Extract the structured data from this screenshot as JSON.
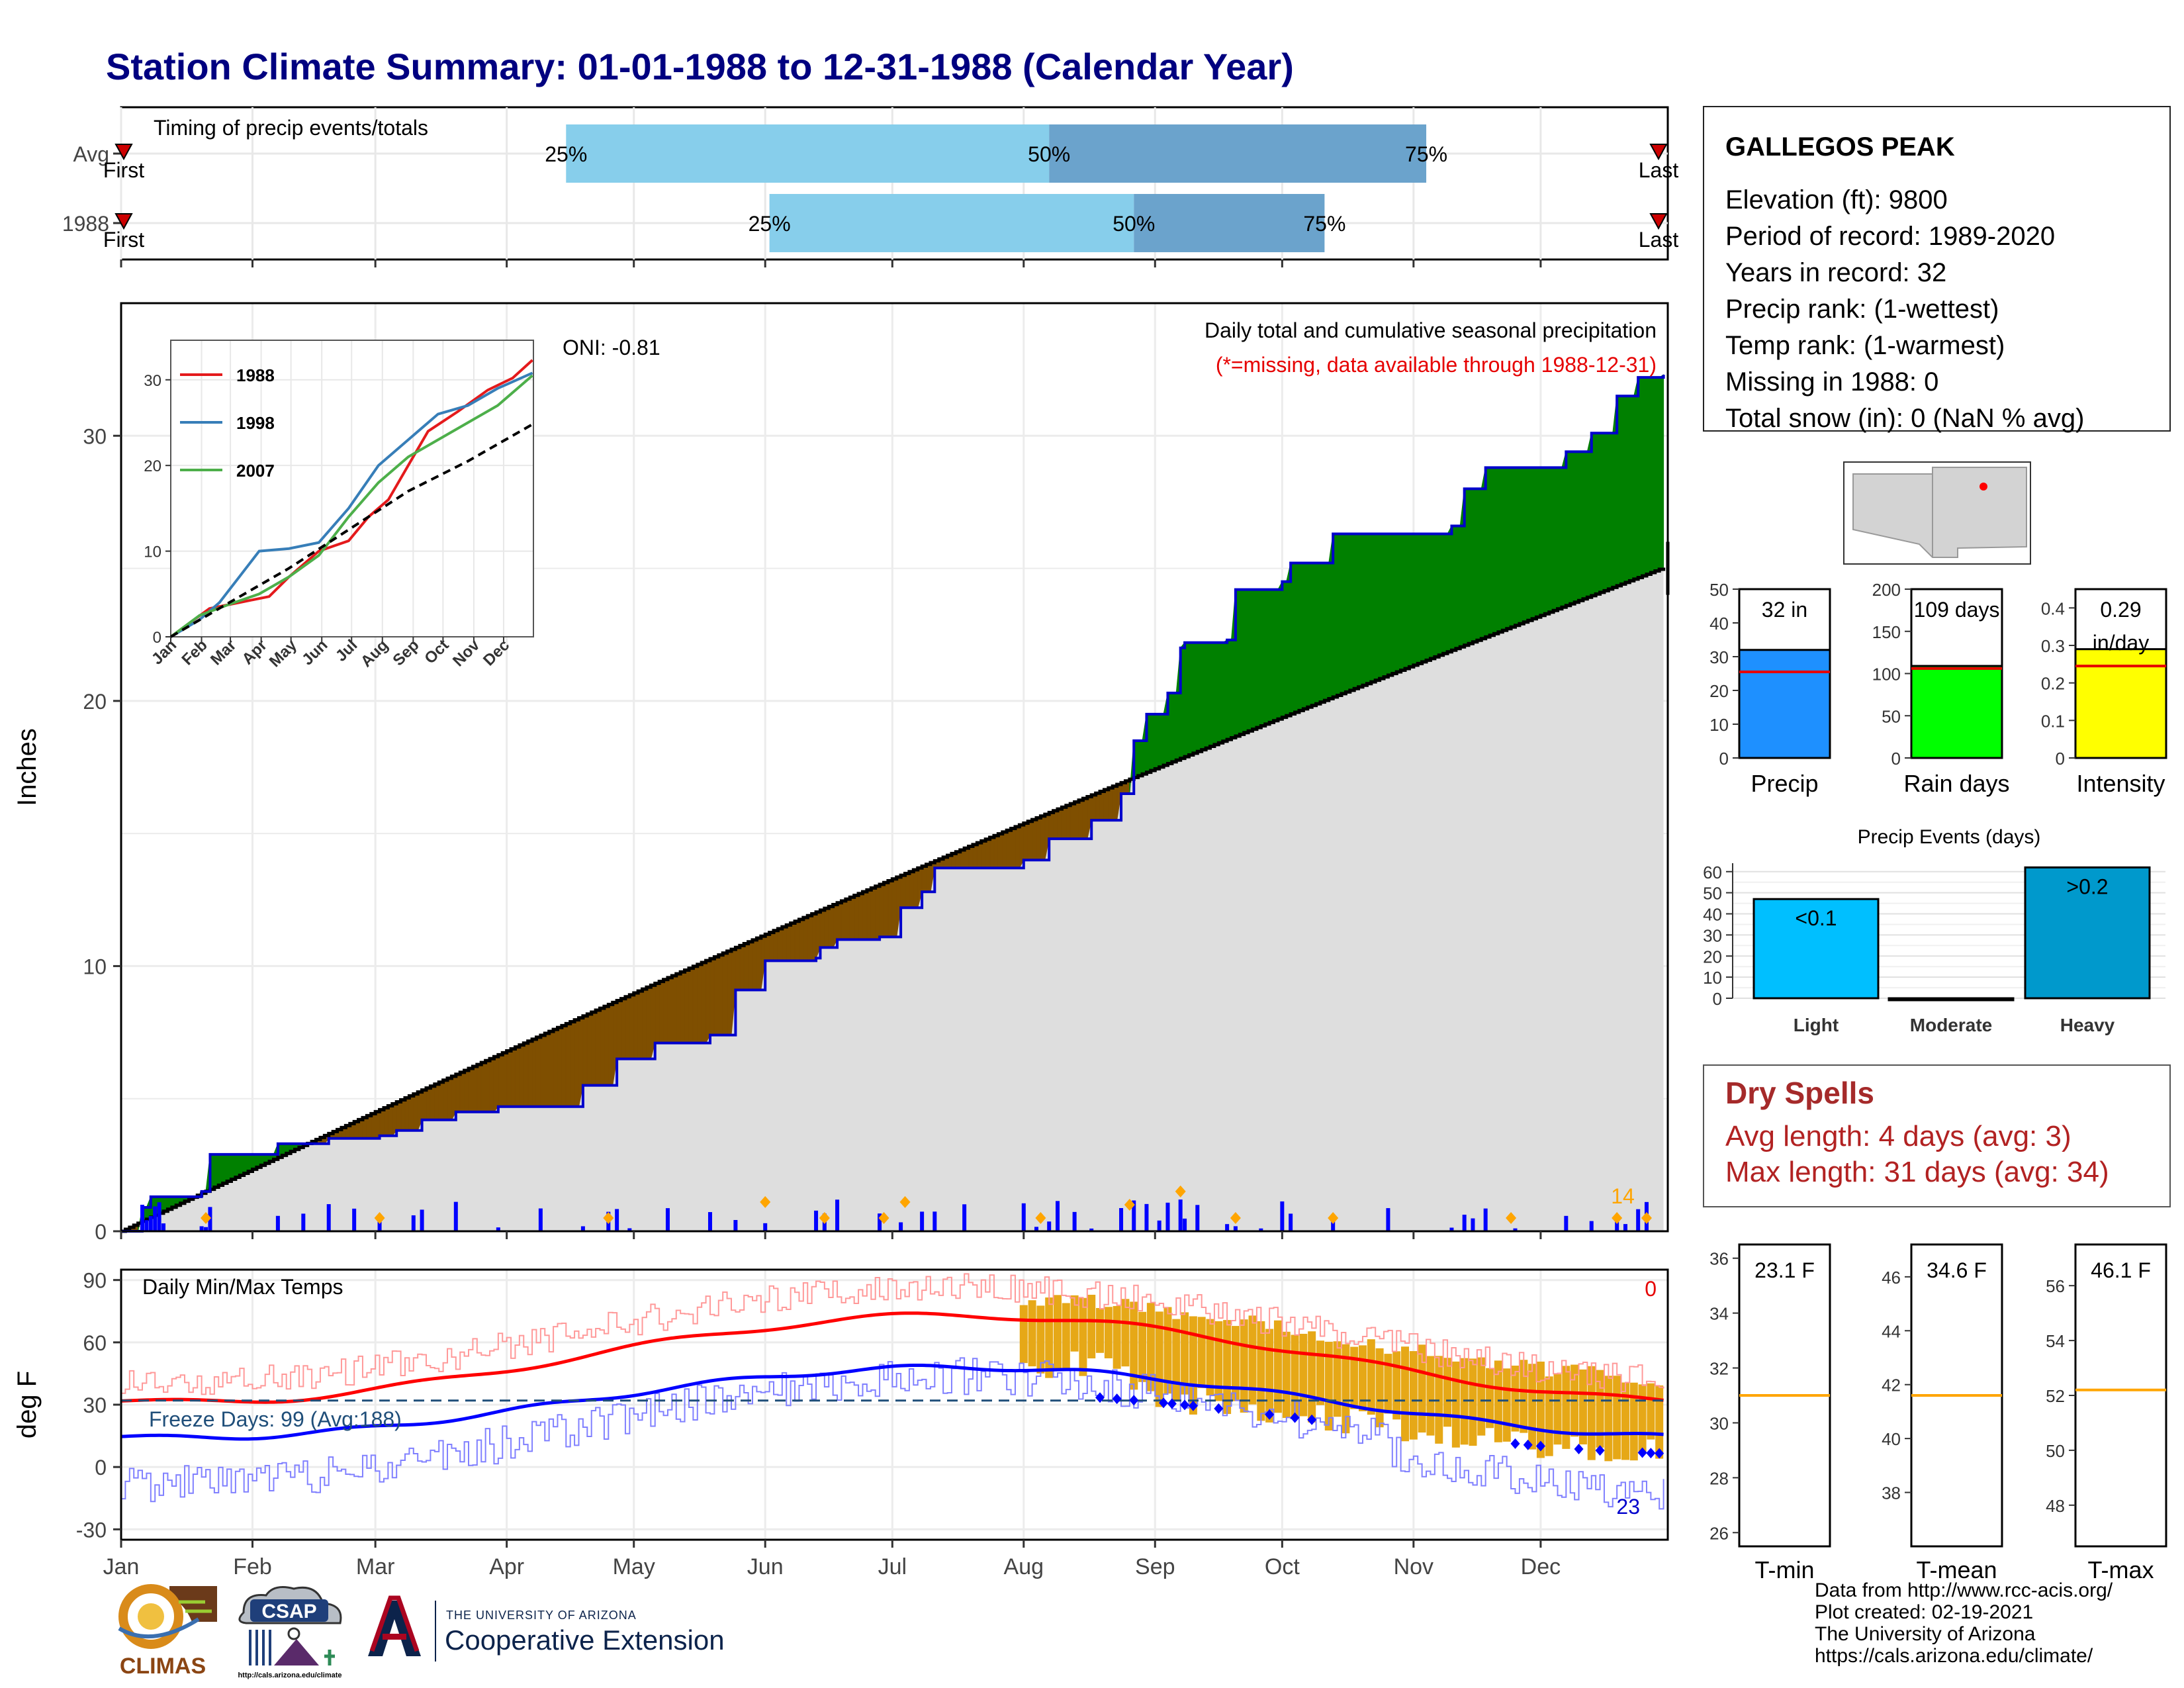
{
  "title": "Station Climate Summary: 01-01-1988 to 12-31-1988 (Calendar Year)",
  "station": {
    "name": "GALLEGOS PEAK",
    "lines": [
      "Elevation (ft): 9800",
      "Period of record: 1989-2020",
      "Years in record: 32",
      "Precip rank:  (1-wettest)",
      "Temp rank:  (1-warmest)",
      "Missing in 1988: 0",
      "Total snow (in): 0 (NaN % avg)"
    ]
  },
  "months": [
    "Jan",
    "Feb",
    "Mar",
    "Apr",
    "May",
    "Jun",
    "Jul",
    "Aug",
    "Sep",
    "Oct",
    "Nov",
    "Dec"
  ],
  "timing": {
    "label": "Timing of precip events/totals",
    "rows": [
      {
        "name": "Avg",
        "q25": 106,
        "q50": 220,
        "q75": 309,
        "q25_label": "25%",
        "q50_label": "50%",
        "q75_label": "75%"
      },
      {
        "name": "1988",
        "q25": 154,
        "q50": 240,
        "q75": 285,
        "q25_label": "25%",
        "q50_label": "50%",
        "q75_label": "75%"
      }
    ],
    "first_label": "First",
    "last_label": "Last",
    "colors": {
      "light": "#87ceeb",
      "dark": "#6ba3cc",
      "marker": "#cc0000"
    }
  },
  "precip": {
    "ylabel": "Inches",
    "yticks": [
      0,
      10,
      20,
      30
    ],
    "ylim": [
      0,
      35
    ],
    "oni": "ONI: -0.81",
    "subtitle": "Daily total and cumulative seasonal precipitation",
    "missing_note": "(*=missing, data available through 1988-12-31)",
    "extreme_count": "14",
    "colors": {
      "above": "#008000",
      "below": "#7f4f00",
      "normal_fill": "#dedede",
      "obs_line": "#0000cc",
      "normal_line": "#000000",
      "daily_bar": "#0000ff",
      "marker": "#ffa500"
    }
  },
  "inset": {
    "years": [
      "1988",
      "1998",
      "2007"
    ],
    "colors": [
      "#e41a1c",
      "#377eb8",
      "#4daf4a"
    ],
    "yticks": [
      0,
      10,
      20,
      30
    ],
    "months": [
      "Jan",
      "Feb",
      "Mar",
      "Apr",
      "May",
      "Jun",
      "Jul",
      "Aug",
      "Sep",
      "Oct",
      "Nov",
      "Dec"
    ]
  },
  "temps": {
    "label": "Daily Min/Max Temps",
    "ylabel": "deg F",
    "yticks": [
      -30,
      0,
      30,
      60,
      90
    ],
    "freeze_label": "Freeze Days: 99 (Avg:188)",
    "top_count": "0",
    "bottom_count": "23",
    "colors": {
      "max_avg": "#ff0000",
      "min_avg": "#0000ff",
      "max_thin": "#ff9999",
      "min_thin": "#8080ff",
      "anomaly": "#e6a817",
      "freeze": "#1f4e79"
    }
  },
  "mini_bars": [
    {
      "name": "Precip",
      "value": 32,
      "avg": 25.5,
      "label": "32 in",
      "ylim": [
        0,
        50
      ],
      "yticks": [
        0,
        10,
        20,
        30,
        40,
        50
      ],
      "color": "#1e90ff"
    },
    {
      "name": "Rain days",
      "value": 109,
      "avg": 106,
      "label": "109 days",
      "ylim": [
        0,
        200
      ],
      "yticks": [
        0,
        50,
        100,
        150,
        200
      ],
      "color": "#00ff00"
    },
    {
      "name": "Intensity",
      "value": 0.29,
      "avg": 0.245,
      "label": "0.29\nin/day",
      "ylim": [
        0,
        0.45
      ],
      "yticks": [
        0.0,
        0.1,
        0.2,
        0.3,
        0.4
      ],
      "color": "#ffff00"
    }
  ],
  "events": {
    "title": "Precip Events (days)",
    "categories": [
      "Light",
      "Moderate",
      "Heavy"
    ],
    "values": [
      47,
      0,
      62
    ],
    "labels": [
      "<0.1",
      "",
      ">0.2"
    ],
    "colors": [
      "#00bfff",
      "#00bfff",
      "#0099cc"
    ],
    "yticks": [
      0,
      10,
      20,
      30,
      40,
      50,
      60
    ]
  },
  "dry_spells": {
    "title": "Dry Spells",
    "avg": "Avg length: 4 days (avg: 3)",
    "max": "Max length: 31 days (avg: 34)"
  },
  "temp_boxes": [
    {
      "name": "T-min",
      "value": "23.1 F",
      "avg": 31,
      "ylim": [
        25.5,
        36.5
      ],
      "yticks": [
        26,
        28,
        30,
        32,
        34,
        36
      ]
    },
    {
      "name": "T-mean",
      "value": "34.6 F",
      "avg": 41.6,
      "ylim": [
        36,
        47.2
      ],
      "yticks": [
        38,
        40,
        42,
        44,
        46
      ]
    },
    {
      "name": "T-max",
      "value": "46.1 F",
      "avg": 52.2,
      "ylim": [
        46.5,
        57.5
      ],
      "yticks": [
        48,
        50,
        52,
        54,
        56
      ]
    }
  ],
  "credits": [
    "Data from http://www.rcc-acis.org/",
    "Plot created: 02-19-2021",
    "The University of Arizona",
    "https://cals.arizona.edu/climate/"
  ],
  "logos": {
    "climas": "CLIMAS",
    "csap": "CSAP",
    "csap_url": "http://cals.arizona.edu/climate",
    "ua_small": "THE UNIVERSITY OF ARIZONA",
    "ua_big": "Cooperative Extension"
  }
}
